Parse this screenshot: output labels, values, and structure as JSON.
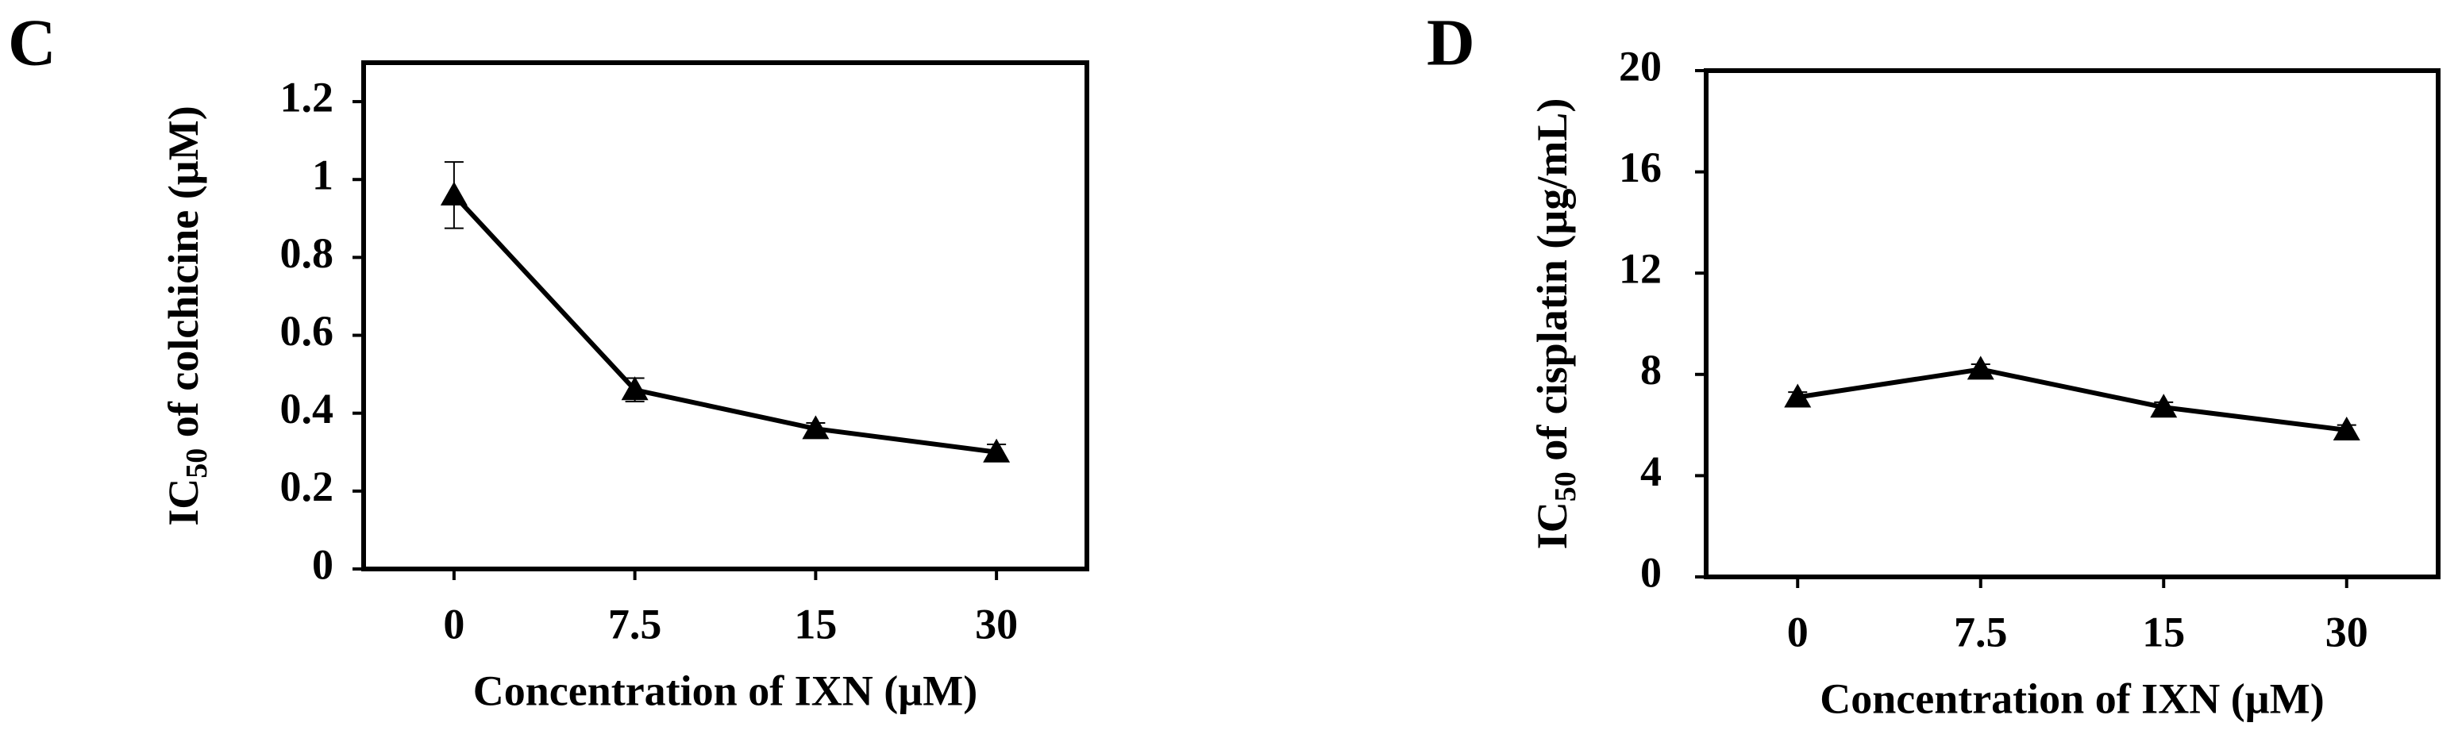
{
  "chart_data": [
    {
      "type": "line",
      "panel": "C",
      "xlabel": "Concentration of  IXN (µM)",
      "ylabel": {
        "main": "IC",
        "sub": "50",
        "rest": " of colchicine  (µM)"
      },
      "categories": [
        "0",
        "7.5",
        "15",
        "30"
      ],
      "series": [
        {
          "color": "#000000",
          "values": [
            0.96,
            0.46,
            0.36,
            0.3
          ],
          "errors": [
            0.085,
            0.03,
            0.015,
            0.02
          ]
        }
      ],
      "ylim": [
        0,
        1.3
      ],
      "yticks": [
        0,
        0.2,
        0.4,
        0.6,
        0.8,
        1,
        1.2
      ]
    },
    {
      "type": "line",
      "panel": "D",
      "xlabel": "Concentration of  IXN (µM)",
      "ylabel": {
        "main": "IC",
        "sub": "50",
        "rest": " of cisplatin (µg/mL)"
      },
      "categories": [
        "0",
        "7.5",
        "15",
        "30"
      ],
      "series": [
        {
          "color": "#000000",
          "values": [
            7.1,
            8.2,
            6.7,
            5.8
          ],
          "errors": [
            0.2,
            0.2,
            0.2,
            0.2
          ]
        }
      ],
      "ylim": [
        0,
        20
      ],
      "yticks": [
        0,
        4,
        8,
        12,
        16,
        20
      ]
    }
  ]
}
